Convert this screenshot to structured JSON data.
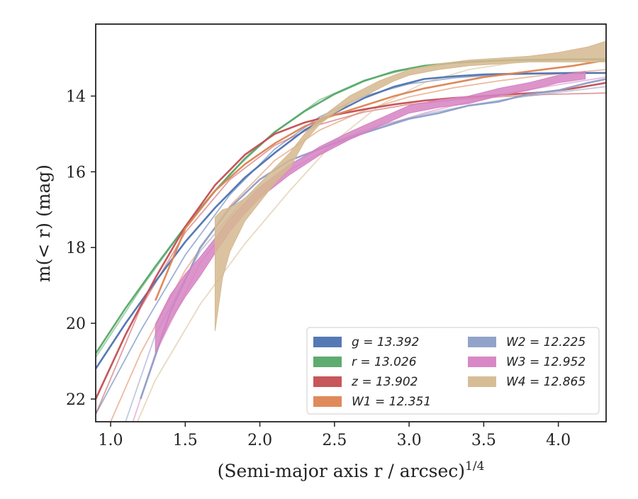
{
  "chart_data": {
    "type": "line",
    "xlabel": "(Semi-major axis r / arcsec)",
    "xlabel_superscript": "1/4",
    "ylabel": "m(< r) (mag)",
    "xlim": [
      0.9,
      4.32
    ],
    "ylim": [
      22.6,
      12.1
    ],
    "y_inverted": true,
    "grid": false,
    "legend_position": "bottom-right",
    "x_ticks": [
      1.0,
      1.5,
      2.0,
      2.5,
      3.0,
      3.5,
      4.0
    ],
    "x_tick_labels": [
      "1.0",
      "1.5",
      "2.0",
      "2.5",
      "3.0",
      "3.5",
      "4.0"
    ],
    "y_ticks": [
      14,
      16,
      18,
      20,
      22
    ],
    "y_tick_labels": [
      "14",
      "16",
      "18",
      "20",
      "22"
    ],
    "series": [
      {
        "name": "g = 13.392",
        "band": "g",
        "value": "13.392",
        "color": "#4c72b0",
        "data_x": [
          0.9,
          1.1,
          1.3,
          1.5,
          1.7,
          1.9,
          2.1,
          2.3,
          2.5,
          2.7,
          2.9,
          3.1,
          3.3,
          3.5,
          3.7,
          3.9,
          4.1,
          4.32
        ],
        "data_y": [
          21.2,
          20.0,
          18.9,
          17.85,
          16.95,
          16.15,
          15.5,
          14.9,
          14.45,
          14.05,
          13.75,
          13.55,
          13.48,
          13.43,
          13.41,
          13.4,
          13.39,
          13.39
        ],
        "model_x": [
          0.9,
          1.2,
          1.5,
          1.8,
          2.1,
          2.4,
          2.7,
          3.0,
          3.3,
          3.6,
          3.9,
          4.32
        ],
        "model_y": [
          22.4,
          20.2,
          18.2,
          16.6,
          15.4,
          14.55,
          14.0,
          13.68,
          13.52,
          13.44,
          13.41,
          13.39
        ]
      },
      {
        "name": "r = 13.026",
        "band": "r",
        "value": "13.026",
        "color": "#55a868",
        "data_x": [
          0.9,
          1.1,
          1.3,
          1.5,
          1.7,
          1.9,
          2.1,
          2.3,
          2.5,
          2.7,
          2.9,
          3.1,
          3.3,
          3.5,
          3.7,
          3.9,
          4.1,
          4.32
        ],
        "data_y": [
          20.8,
          19.6,
          18.5,
          17.45,
          16.5,
          15.65,
          14.95,
          14.4,
          13.95,
          13.6,
          13.35,
          13.2,
          13.12,
          13.08,
          13.05,
          13.04,
          13.03,
          13.03
        ],
        "model_x": [
          0.9,
          1.2,
          1.5,
          1.8,
          2.1,
          2.4,
          2.7,
          3.0,
          3.3,
          3.6,
          3.9,
          4.32
        ],
        "model_y": [
          20.9,
          19.1,
          17.45,
          16.05,
          14.95,
          14.1,
          13.58,
          13.28,
          13.13,
          13.06,
          13.04,
          13.03
        ]
      },
      {
        "name": "z = 13.902",
        "band": "z",
        "value": "13.902",
        "color": "#c44e52",
        "data_x": [
          0.9,
          1.1,
          1.3,
          1.5,
          1.7,
          1.9,
          2.1,
          2.3,
          2.5,
          2.7,
          2.9,
          3.1,
          3.3,
          3.5,
          3.7,
          3.9,
          4.1,
          4.32
        ],
        "data_y": [
          22.0,
          20.3,
          18.8,
          17.45,
          16.35,
          15.55,
          15.0,
          14.7,
          14.5,
          14.35,
          14.22,
          14.12,
          14.05,
          14.0,
          13.95,
          13.9,
          13.8,
          13.65
        ],
        "model_x": [
          0.9,
          1.2,
          1.5,
          1.8,
          2.1,
          2.4,
          2.7,
          3.0,
          3.3,
          3.6,
          3.9,
          4.32
        ],
        "model_y": [
          22.4,
          19.6,
          17.6,
          16.2,
          15.3,
          14.75,
          14.42,
          14.22,
          14.1,
          14.02,
          13.96,
          13.92
        ]
      },
      {
        "name": "W1 = 12.351",
        "band": "W1",
        "value": "12.351",
        "color": "#dd8452",
        "data_x": [
          1.3,
          1.5,
          1.7,
          1.9,
          2.1,
          2.3,
          2.5,
          2.7,
          2.9,
          3.1,
          3.3,
          3.5,
          3.7,
          3.9,
          4.1,
          4.32
        ],
        "data_y": [
          19.4,
          17.5,
          16.5,
          15.8,
          15.25,
          14.8,
          14.5,
          14.25,
          14.0,
          13.8,
          13.65,
          13.5,
          13.4,
          13.3,
          13.2,
          13.05
        ],
        "model_x": [
          1.0,
          1.2,
          1.5,
          1.8,
          2.1,
          2.4,
          2.7,
          3.0,
          3.3,
          3.6,
          3.9,
          4.32
        ],
        "model_y": [
          22.6,
          20.8,
          18.6,
          16.9,
          15.7,
          14.9,
          14.38,
          14.02,
          13.78,
          13.6,
          13.45,
          13.3
        ]
      },
      {
        "name": "W2 = 12.225",
        "band": "W2",
        "value": "12.225",
        "color": "#8c9ec7",
        "data_x": [
          1.2,
          1.4,
          1.6,
          1.8,
          2.0,
          2.2,
          2.4,
          2.6,
          2.8,
          3.0,
          3.2,
          3.4,
          3.6,
          3.8,
          4.0,
          4.2,
          4.32
        ],
        "data_y": [
          22.0,
          19.7,
          18.0,
          16.95,
          16.2,
          15.7,
          15.4,
          15.1,
          14.85,
          14.6,
          14.45,
          14.25,
          14.15,
          13.95,
          13.85,
          13.65,
          13.55
        ],
        "model_x": [
          1.1,
          1.3,
          1.6,
          1.9,
          2.2,
          2.5,
          2.8,
          3.1,
          3.4,
          3.7,
          4.0,
          4.32
        ],
        "model_y": [
          22.6,
          20.3,
          18.1,
          16.7,
          15.8,
          15.2,
          14.78,
          14.48,
          14.25,
          14.05,
          13.9,
          13.75
        ]
      },
      {
        "name": "W3 = 12.952",
        "band": "W3",
        "value": "12.952",
        "color": "#d682c2",
        "data_x": [
          1.3,
          1.4,
          1.5,
          1.6,
          1.7,
          1.8,
          1.9,
          2.0,
          2.2,
          2.4,
          2.6,
          2.8,
          3.0,
          3.2,
          3.4,
          3.6,
          3.8,
          4.0,
          4.18
        ],
        "data_y": [
          20.4,
          19.6,
          19.0,
          18.5,
          17.95,
          17.4,
          16.95,
          16.55,
          15.95,
          15.45,
          15.05,
          14.7,
          14.35,
          14.2,
          14.1,
          13.9,
          13.75,
          13.55,
          13.45
        ],
        "data_width": [
          0.75,
          0.7,
          0.6,
          0.5,
          0.4,
          0.35,
          0.3,
          0.28,
          0.25,
          0.22,
          0.2,
          0.2,
          0.2,
          0.2,
          0.2,
          0.2,
          0.2,
          0.2,
          0.2
        ],
        "model_x": [
          1.15,
          1.3,
          1.6,
          1.9,
          2.2,
          2.5,
          2.8,
          3.1,
          3.4,
          3.7,
          4.0,
          4.32
        ],
        "model_y": [
          22.6,
          20.8,
          18.4,
          16.95,
          15.95,
          15.3,
          14.82,
          14.45,
          14.15,
          13.9,
          13.7,
          13.5
        ]
      },
      {
        "name": "W4 = 12.865",
        "band": "W4",
        "value": "12.865",
        "color": "#d5b990",
        "data_x": [
          1.7,
          1.75,
          1.8,
          1.9,
          2.0,
          2.1,
          2.2,
          2.3,
          2.4,
          2.5,
          2.6,
          2.7,
          2.8,
          2.9,
          3.0,
          3.2,
          3.4,
          3.6,
          3.8,
          4.0,
          4.2,
          4.32
        ],
        "data_upper": [
          17.2,
          17.0,
          16.95,
          16.7,
          16.3,
          15.9,
          15.5,
          15.0,
          14.6,
          14.3,
          14.0,
          13.8,
          13.6,
          13.45,
          13.3,
          13.15,
          13.05,
          13.0,
          12.95,
          12.85,
          12.7,
          12.55
        ],
        "data_lower": [
          20.2,
          18.8,
          18.1,
          17.3,
          16.8,
          16.3,
          15.9,
          15.2,
          14.75,
          14.45,
          14.2,
          14.0,
          13.8,
          13.6,
          13.45,
          13.3,
          13.2,
          13.15,
          13.1,
          13.1,
          13.1,
          13.1
        ],
        "model_x": [
          1.18,
          1.3,
          1.6,
          1.9,
          2.2,
          2.5,
          2.8,
          3.1,
          3.4,
          3.7,
          4.0,
          4.32
        ],
        "model_y": [
          22.6,
          21.5,
          19.5,
          17.9,
          16.5,
          15.2,
          14.25,
          13.65,
          13.3,
          13.12,
          13.05,
          13.0
        ]
      }
    ]
  }
}
